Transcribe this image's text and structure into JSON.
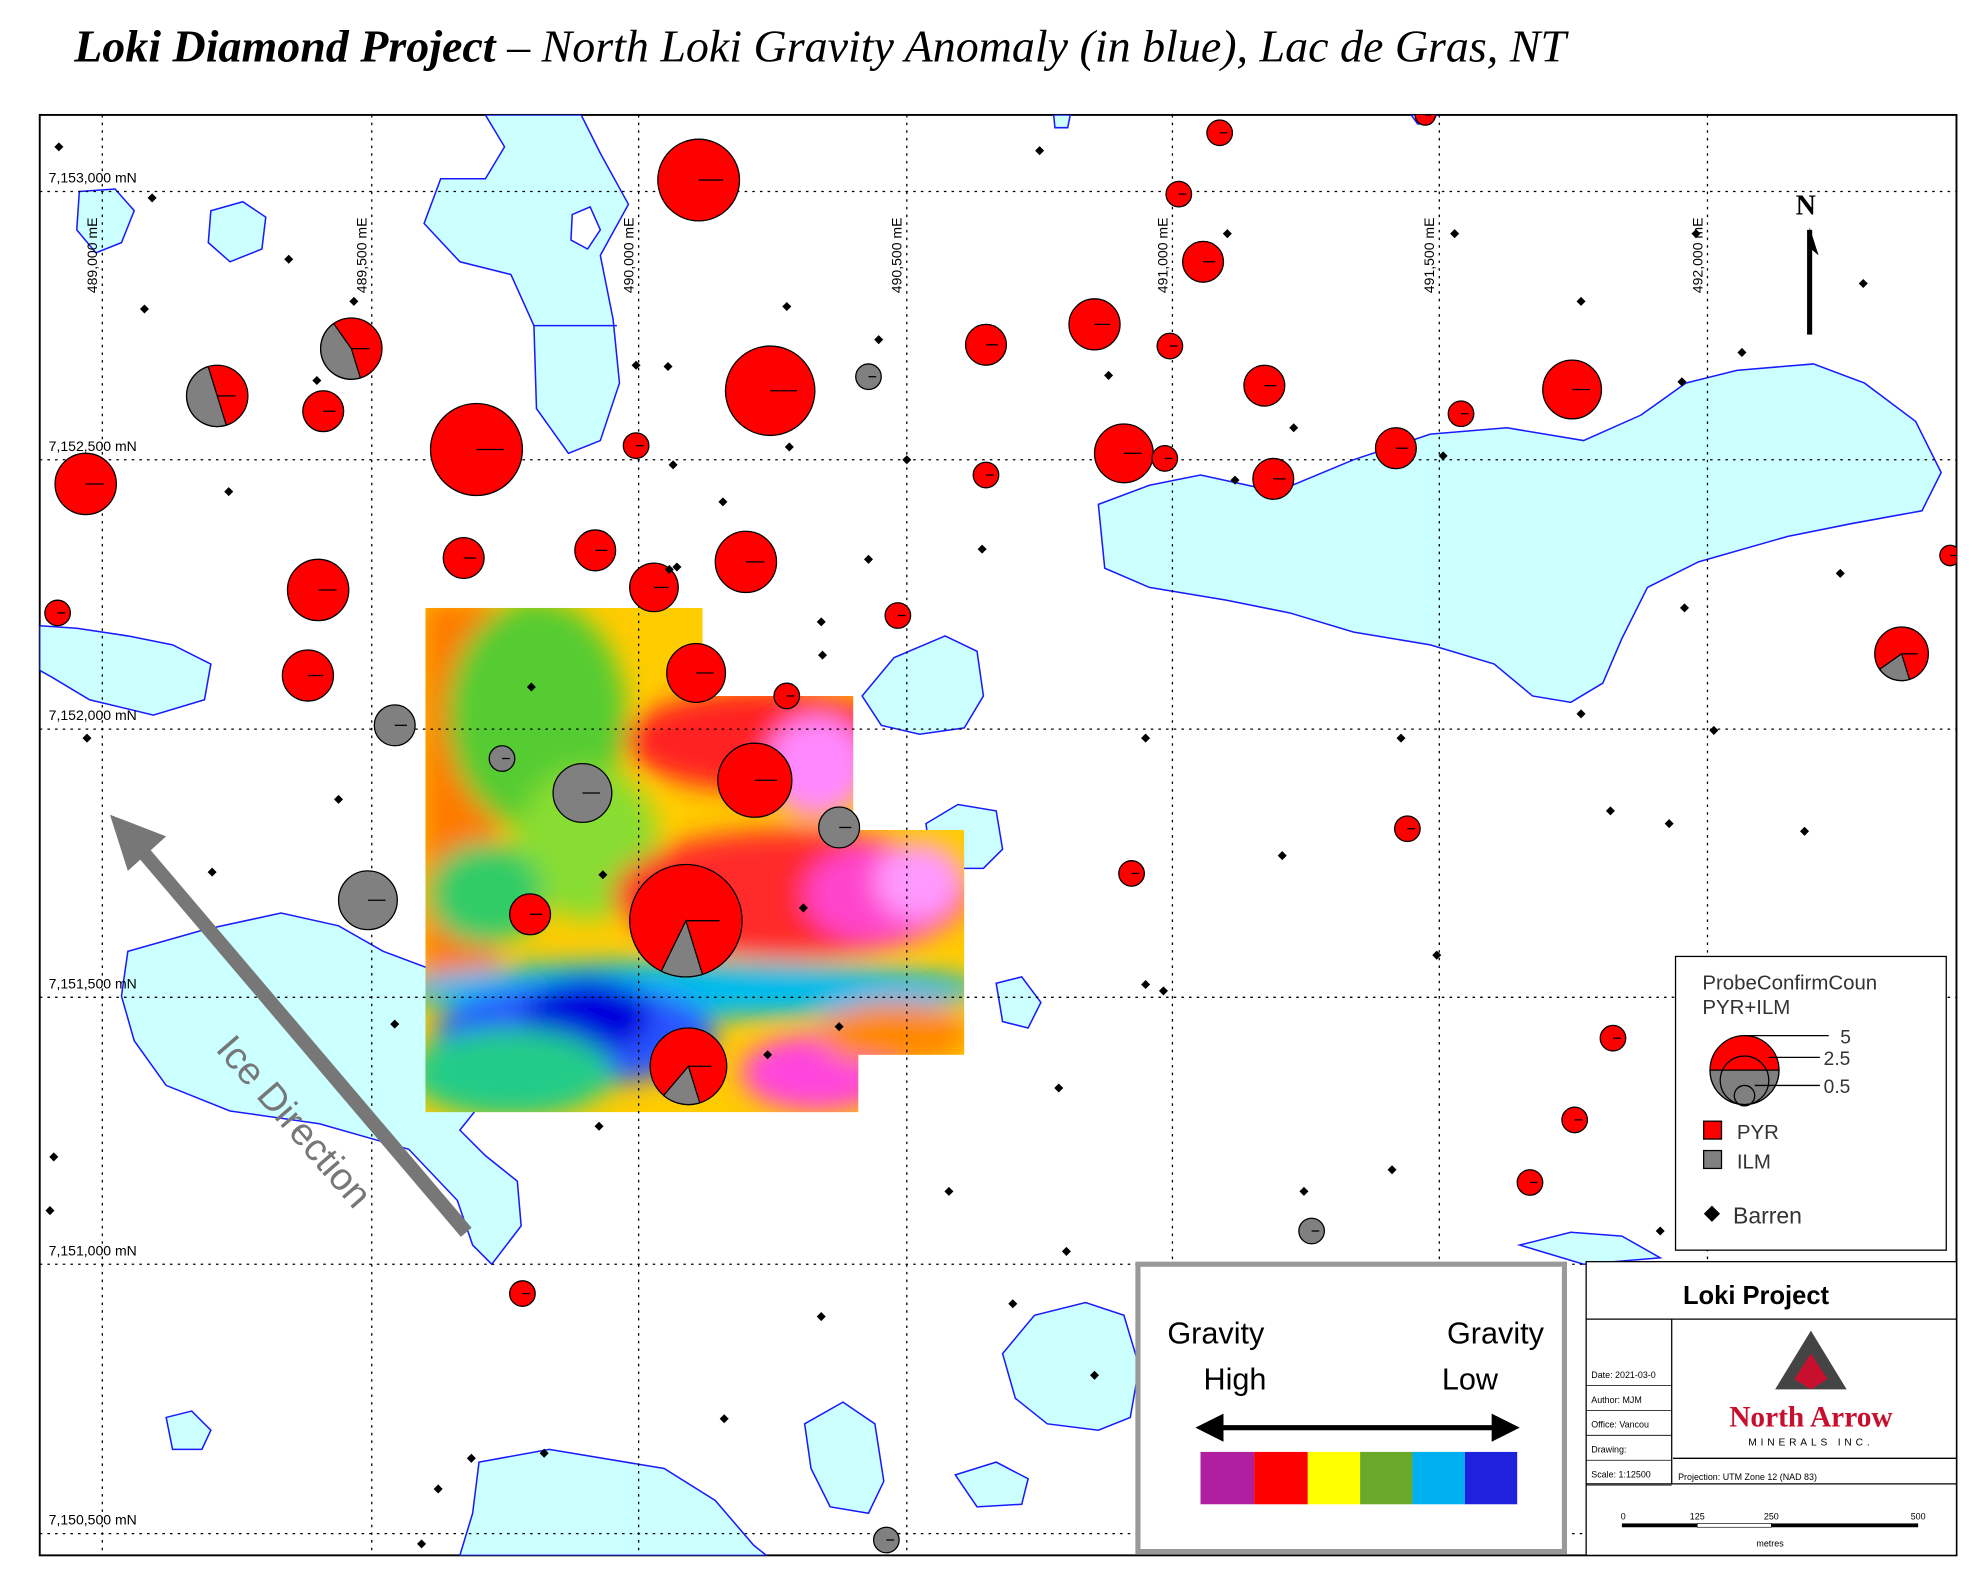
{
  "title": {
    "project": "Loki Diamond Project",
    "subtitle": " – North Loki Gravity Anomaly (in blue), Lac de Gras, NT"
  },
  "grid": {
    "eastings": [
      "489,000 mE",
      "489,500 mE",
      "490,000 mE",
      "490,500 mE",
      "491,000 mE",
      "491,500 mE",
      "492,000 mE"
    ],
    "northings": [
      "7,153,000 mN",
      "7,152,500 mN",
      "7,152,000 mN",
      "7,151,500 mN",
      "7,151,000 mN",
      "7,150,500 mN"
    ]
  },
  "north_label": "N",
  "ice_direction": "Ice Direction",
  "symbol_legend": {
    "title": "ProbeConfirmCoun",
    "subtitle": "PYR+ILM",
    "sizes": [
      "5",
      "2.5",
      "0.5"
    ],
    "items": [
      "PYR",
      "ILM",
      "Barren"
    ]
  },
  "gravity_legend": {
    "high": [
      "Gravity",
      "High"
    ],
    "low": [
      "Gravity",
      "Low"
    ]
  },
  "title_block": {
    "title": "Loki Project",
    "fields": [
      "Date: 2021-03-0",
      "Author: MJM",
      "Office: Vancou",
      "Drawing:",
      "Scale: 1:12500"
    ],
    "projection": "Projection: UTM Zone 12 (NAD 83)",
    "company": "North Arrow",
    "company_sub": "MINERALS INC.",
    "scale_labels": [
      "0",
      "125",
      "250",
      "500"
    ],
    "scale_unit": "metres"
  }
}
